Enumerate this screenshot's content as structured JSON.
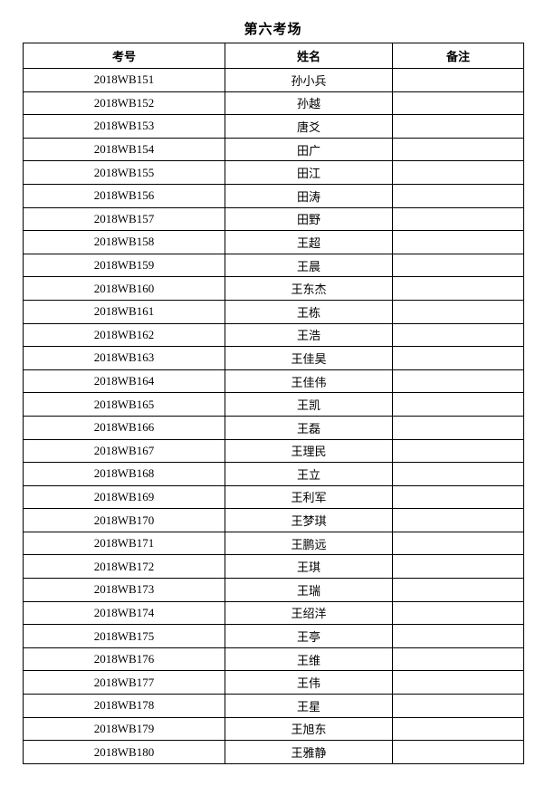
{
  "page": {
    "title": "第六考场"
  },
  "table": {
    "headers": [
      "考号",
      "姓名",
      "备注"
    ],
    "rows": [
      {
        "exam_no": "2018WB151",
        "name": "孙小兵",
        "remark": ""
      },
      {
        "exam_no": "2018WB152",
        "name": "孙越",
        "remark": ""
      },
      {
        "exam_no": "2018WB153",
        "name": "唐爻",
        "remark": ""
      },
      {
        "exam_no": "2018WB154",
        "name": "田广",
        "remark": ""
      },
      {
        "exam_no": "2018WB155",
        "name": "田江",
        "remark": ""
      },
      {
        "exam_no": "2018WB156",
        "name": "田涛",
        "remark": ""
      },
      {
        "exam_no": "2018WB157",
        "name": "田野",
        "remark": ""
      },
      {
        "exam_no": "2018WB158",
        "name": "王超",
        "remark": ""
      },
      {
        "exam_no": "2018WB159",
        "name": "王晨",
        "remark": ""
      },
      {
        "exam_no": "2018WB160",
        "name": "王东杰",
        "remark": ""
      },
      {
        "exam_no": "2018WB161",
        "name": "王栋",
        "remark": ""
      },
      {
        "exam_no": "2018WB162",
        "name": "王浩",
        "remark": ""
      },
      {
        "exam_no": "2018WB163",
        "name": "王佳昊",
        "remark": ""
      },
      {
        "exam_no": "2018WB164",
        "name": "王佳伟",
        "remark": ""
      },
      {
        "exam_no": "2018WB165",
        "name": "王凯",
        "remark": ""
      },
      {
        "exam_no": "2018WB166",
        "name": "王磊",
        "remark": ""
      },
      {
        "exam_no": "2018WB167",
        "name": "王理民",
        "remark": ""
      },
      {
        "exam_no": "2018WB168",
        "name": "王立",
        "remark": ""
      },
      {
        "exam_no": "2018WB169",
        "name": "王利军",
        "remark": ""
      },
      {
        "exam_no": "2018WB170",
        "name": "王梦琪",
        "remark": ""
      },
      {
        "exam_no": "2018WB171",
        "name": "王鹏远",
        "remark": ""
      },
      {
        "exam_no": "2018WB172",
        "name": "王琪",
        "remark": ""
      },
      {
        "exam_no": "2018WB173",
        "name": "王瑞",
        "remark": ""
      },
      {
        "exam_no": "2018WB174",
        "name": "王绍洋",
        "remark": ""
      },
      {
        "exam_no": "2018WB175",
        "name": "王亭",
        "remark": ""
      },
      {
        "exam_no": "2018WB176",
        "name": "王维",
        "remark": ""
      },
      {
        "exam_no": "2018WB177",
        "name": "王伟",
        "remark": ""
      },
      {
        "exam_no": "2018WB178",
        "name": "王星",
        "remark": ""
      },
      {
        "exam_no": "2018WB179",
        "name": "王旭东",
        "remark": ""
      },
      {
        "exam_no": "2018WB180",
        "name": "王雅静",
        "remark": ""
      }
    ]
  }
}
